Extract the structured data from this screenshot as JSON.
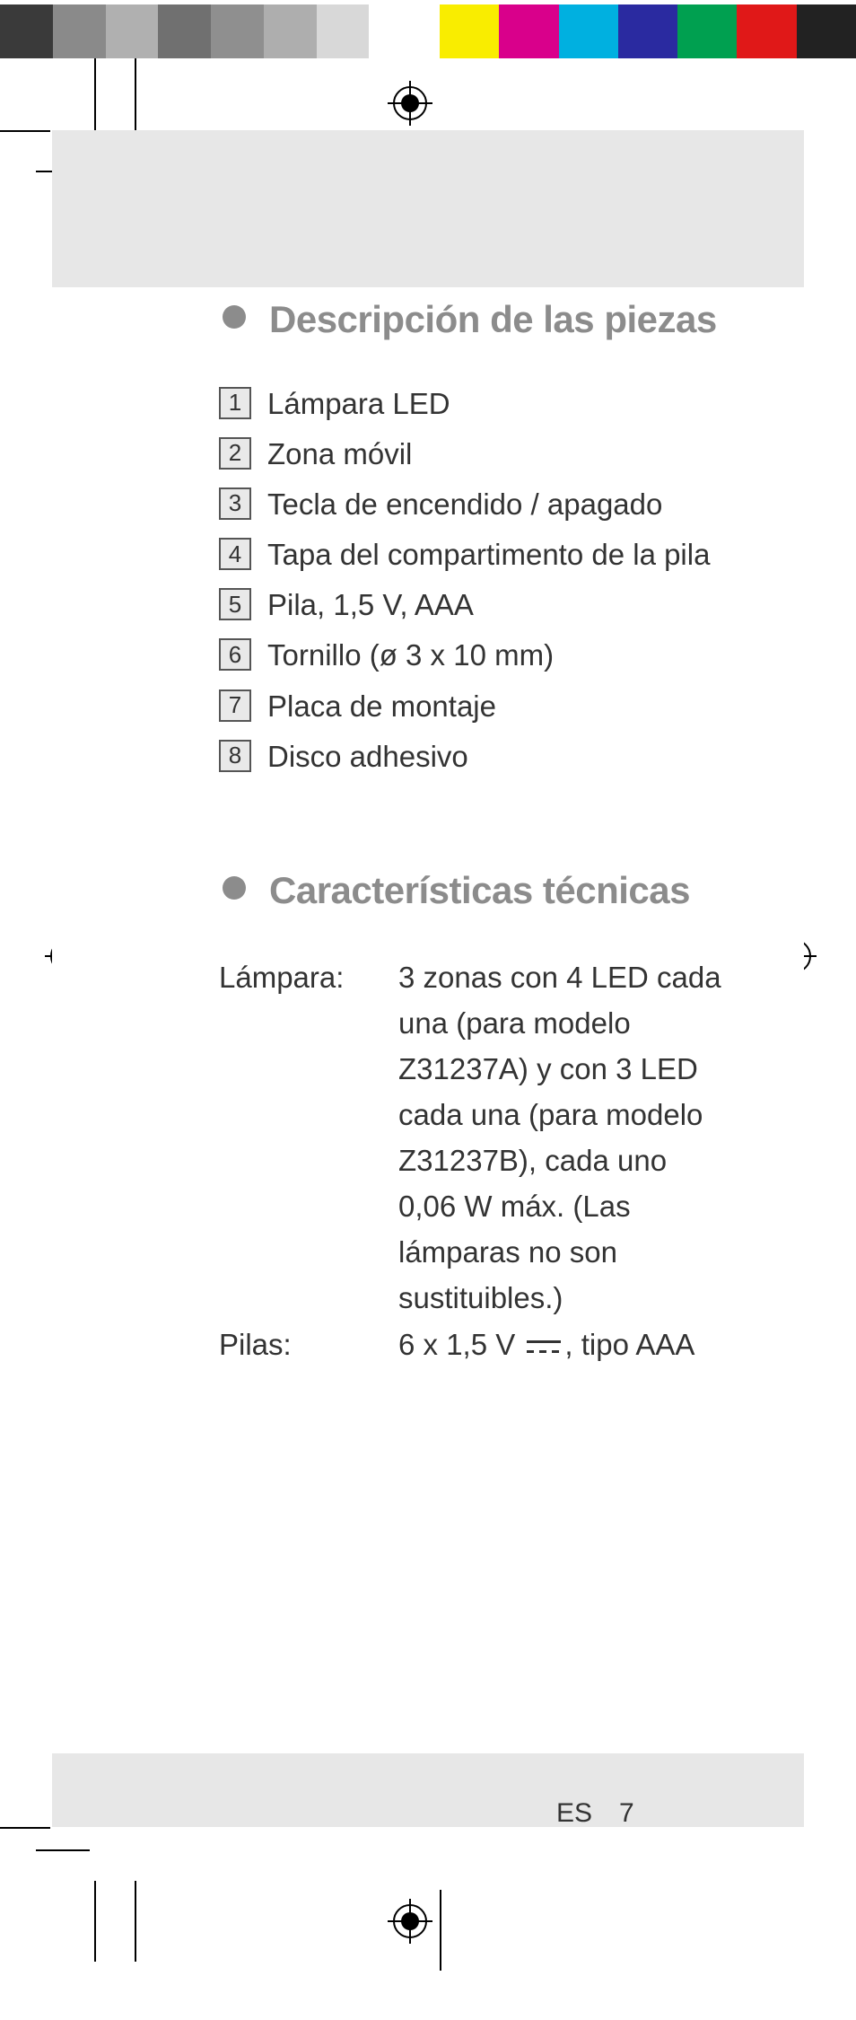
{
  "colorBars": {
    "left": [
      "#3a3a3a",
      "#8a8a8a",
      "#b0b0b0",
      "#707070",
      "#8f8f8f",
      "#aeaeae",
      "#d8d8d8",
      "#ffffff"
    ],
    "right": [
      "#f9ed00",
      "#d9008b",
      "#00b0e0",
      "#2a2aa0",
      "#00a050",
      "#e01818",
      "#222222"
    ]
  },
  "sections": {
    "parts": {
      "heading": "Descripción de las piezas",
      "items": [
        {
          "num": "1",
          "label": "Lámpara LED"
        },
        {
          "num": "2",
          "label": "Zona móvil"
        },
        {
          "num": "3",
          "label": "Tecla de encendido / apagado"
        },
        {
          "num": "4",
          "label": "Tapa del compartimento de la pila"
        },
        {
          "num": "5",
          "label": "Pila, 1,5 V, AAA"
        },
        {
          "num": "6",
          "label": "Tornillo (ø 3 x 10 mm)"
        },
        {
          "num": "7",
          "label": "Placa de montaje"
        },
        {
          "num": "8",
          "label": "Disco adhesivo"
        }
      ]
    },
    "specs": {
      "heading": "Características técnicas",
      "rows": [
        {
          "key": "Lámpara:",
          "val": "3 zonas con 4 LED cada una (para modelo Z31237A) y con 3 LED cada una (para modelo Z31237B), cada uno 0,06 W máx. (Las lámparas no son sustituibles.)"
        },
        {
          "key": "Pilas:",
          "val_pre": "6 x 1,5 V",
          "val_post": ", tipo AAA",
          "dc": true
        }
      ]
    }
  },
  "footer": {
    "lang": "ES",
    "page": "7"
  }
}
